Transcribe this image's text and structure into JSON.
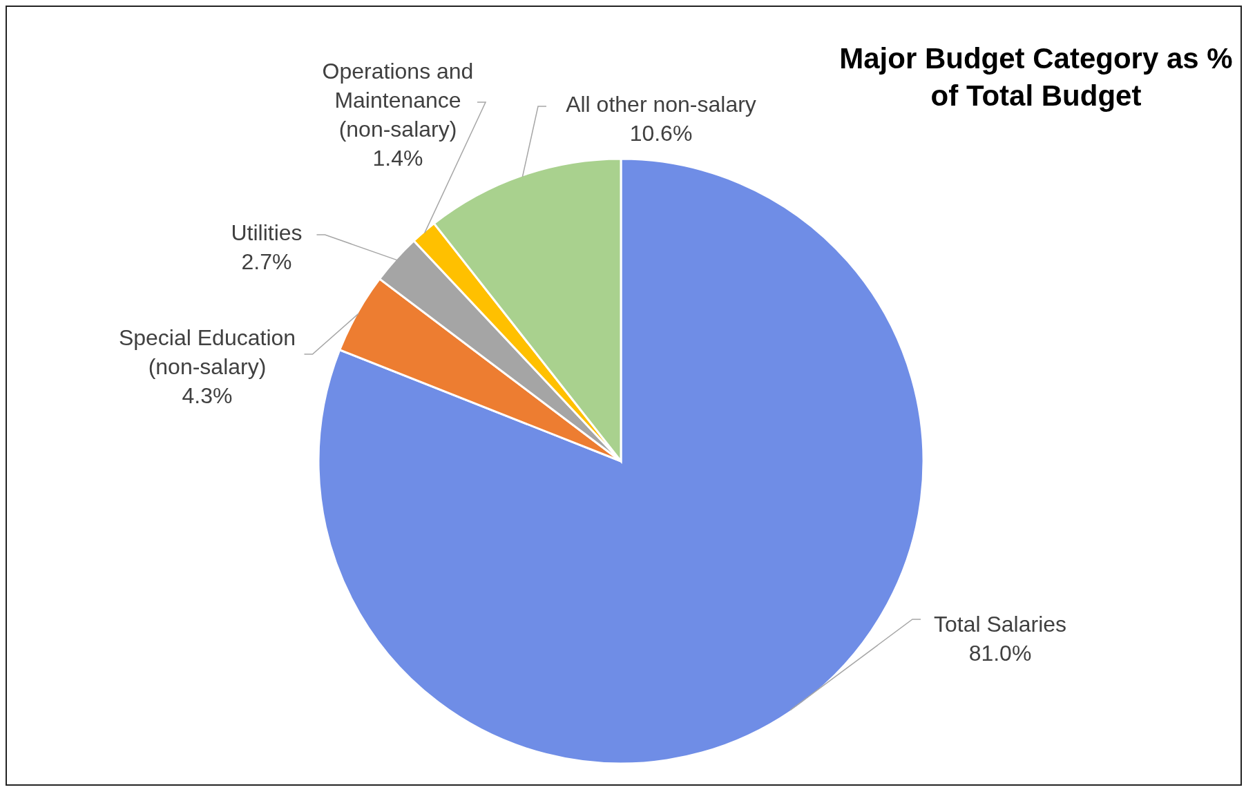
{
  "chart_data": {
    "type": "pie",
    "title": "Major Budget Category as % of Total Budget",
    "categories": [
      "Total Salaries",
      "Special Education (non-salary)",
      "Utilities",
      "Operations and Maintenance (non-salary)",
      "All other non-salary"
    ],
    "values": [
      81.0,
      4.3,
      2.7,
      1.4,
      10.6
    ],
    "value_labels": [
      "81.0%",
      "4.3%",
      "2.7%",
      "1.4%",
      "10.6%"
    ],
    "colors": [
      "#6f8de6",
      "#ed7d31",
      "#a5a5a5",
      "#ffc000",
      "#a9d18e"
    ],
    "legend": false
  }
}
